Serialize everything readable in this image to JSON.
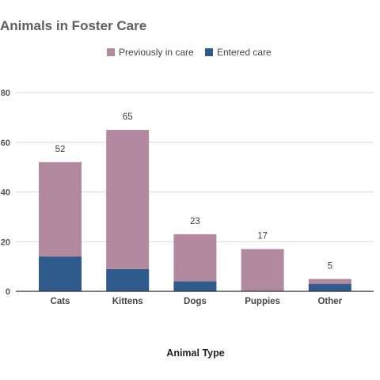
{
  "chart_data": {
    "type": "bar",
    "stacked": true,
    "title": "Animals in Foster Care",
    "xlabel": "Animal Type",
    "ylabel": "",
    "ylim": [
      0,
      80
    ],
    "yticks": [
      0,
      20,
      40,
      60,
      80
    ],
    "grid": true,
    "legend_position": "top",
    "categories": [
      "Cats",
      "Kittens",
      "Dogs",
      "Puppies",
      "Other"
    ],
    "series": [
      {
        "name": "Entered care",
        "color": "#2e5a8c",
        "values": [
          14,
          9,
          4,
          0,
          3
        ]
      },
      {
        "name": "Previously in care",
        "color": "#b3899f",
        "values": [
          38,
          56,
          19,
          17,
          2
        ]
      }
    ],
    "totals": [
      "52",
      "65",
      "23",
      "17",
      "5"
    ],
    "legend_order": [
      "Previously in care",
      "Entered care"
    ]
  }
}
